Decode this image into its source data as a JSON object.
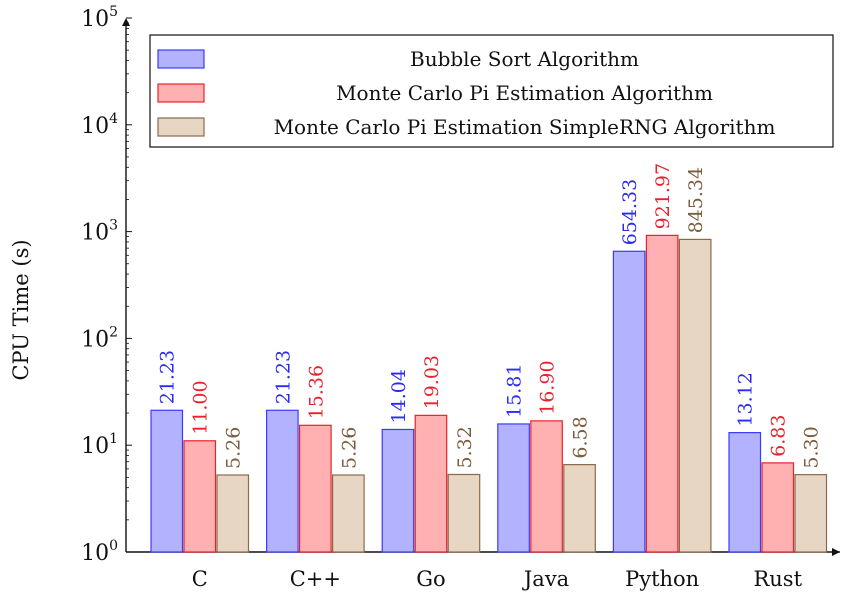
{
  "chart_data": {
    "type": "bar",
    "title": "",
    "xlabel": "",
    "ylabel": "CPU Time (s)",
    "yscale": "log",
    "ylim": [
      1,
      100000
    ],
    "yticks": [
      {
        "base": "10",
        "exp": "0"
      },
      {
        "base": "10",
        "exp": "1"
      },
      {
        "base": "10",
        "exp": "2"
      },
      {
        "base": "10",
        "exp": "3"
      },
      {
        "base": "10",
        "exp": "4"
      },
      {
        "base": "10",
        "exp": "5"
      }
    ],
    "categories": [
      "C",
      "C++",
      "Go",
      "Java",
      "Python",
      "Rust"
    ],
    "legend_position": "top",
    "series": [
      {
        "name": "Bubble Sort Algorithm",
        "fill": "#b2b2ff",
        "stroke": "#3b3bff",
        "label_color": "#2a2af0",
        "values": [
          21.23,
          21.23,
          14.04,
          15.81,
          654.33,
          13.12
        ],
        "labels": [
          "21.23",
          "21.23",
          "14.04",
          "15.81",
          "654.33",
          "13.12"
        ]
      },
      {
        "name": "Monte Carlo Pi Estimation Algorithm",
        "fill": "#ffb0b0",
        "stroke": "#e8222c",
        "label_color": "#e8222c",
        "values": [
          11.0,
          15.36,
          19.03,
          16.9,
          921.97,
          6.83
        ],
        "labels": [
          "11.00",
          "15.36",
          "19.03",
          "16.90",
          "921.97",
          "6.83"
        ]
      },
      {
        "name": "Monte Carlo Pi Estimation SimpleRNG Algorithm",
        "fill": "#e8d6c4",
        "stroke": "#8a6a4a",
        "label_color": "#7a5c3e",
        "values": [
          5.26,
          5.26,
          5.32,
          6.58,
          845.34,
          5.3
        ],
        "labels": [
          "5.26",
          "5.26",
          "5.32",
          "6.58",
          "845.34",
          "5.30"
        ]
      }
    ]
  }
}
